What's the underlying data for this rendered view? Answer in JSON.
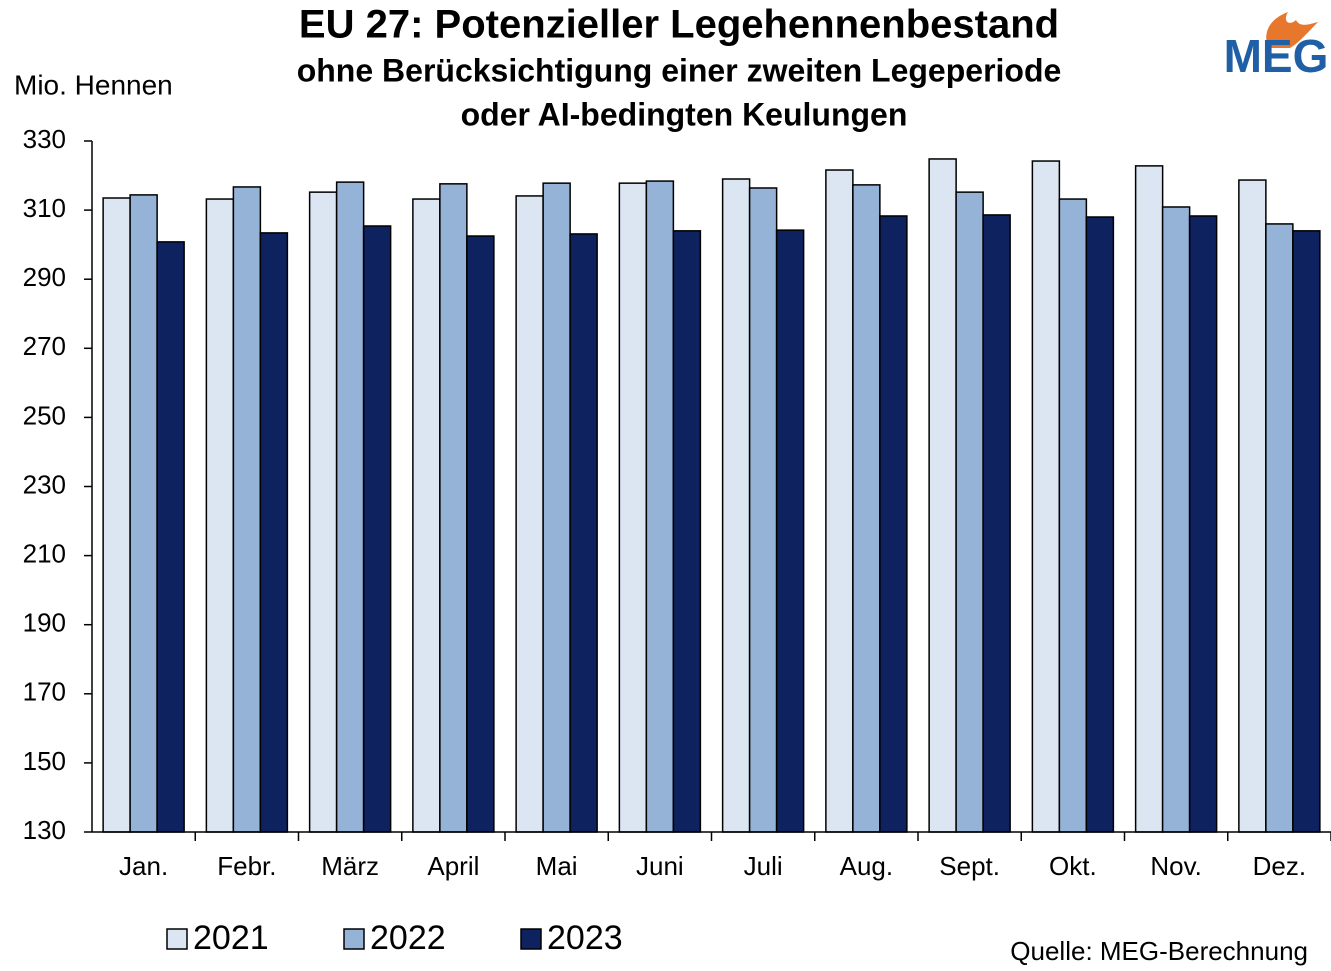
{
  "chart_data": {
    "type": "bar",
    "title": "EU 27: Potenzieller Legehennenbestand",
    "subtitle": [
      "ohne Berücksichtigung einer zweiten Legeperiode",
      "oder AI-bedingten Keulungen"
    ],
    "y_axis_label": "Mio. Hennen",
    "source": "Quelle: MEG-Berechnung",
    "logo": "MEG",
    "categories": [
      "Jan.",
      "Febr.",
      "März",
      "April",
      "Mai",
      "Juni",
      "Juli",
      "Aug.",
      "Sept.",
      "Okt.",
      "Nov.",
      "Dez."
    ],
    "series": [
      {
        "name": "2021",
        "color": "#dce6f2",
        "values": [
          313.5,
          313.2,
          315.2,
          313.2,
          314.1,
          317.8,
          319.0,
          321.6,
          324.8,
          324.2,
          322.8,
          318.7
        ]
      },
      {
        "name": "2022",
        "color": "#95b3d7",
        "values": [
          314.4,
          316.7,
          318.1,
          317.6,
          317.8,
          318.4,
          316.4,
          317.3,
          315.2,
          313.2,
          310.9,
          306.0
        ]
      },
      {
        "name": "2023",
        "color": "#0f2260",
        "values": [
          300.8,
          303.4,
          305.4,
          302.5,
          303.1,
          304.0,
          304.2,
          308.3,
          308.6,
          308.0,
          308.3,
          304.0
        ]
      }
    ],
    "ylim": [
      130,
      330
    ],
    "yticks": [
      130,
      150,
      170,
      190,
      210,
      230,
      250,
      270,
      290,
      310,
      330
    ],
    "grid": false
  }
}
